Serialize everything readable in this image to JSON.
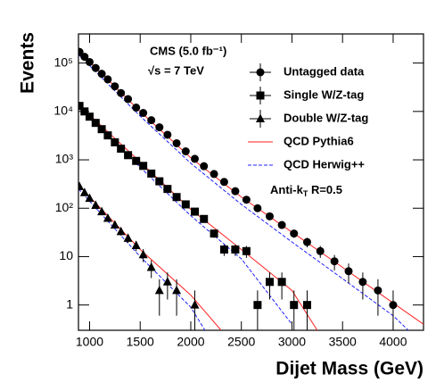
{
  "chart_data": {
    "type": "scatter",
    "xlabel": "Dijet Mass (GeV)",
    "ylabel": "Events",
    "log_y": true,
    "xlim": [
      890,
      4300
    ],
    "ylim": [
      0.3,
      400000
    ],
    "xticks": [
      1000,
      1500,
      2000,
      2500,
      3000,
      3500,
      4000
    ],
    "yticks": [
      1,
      10,
      {
        "value": 100,
        "label": "10²"
      },
      {
        "value": 1000,
        "label": "10³"
      },
      {
        "value": 10000,
        "label": "10⁴"
      },
      {
        "value": 100000,
        "label": "10⁵"
      }
    ],
    "annotations": [
      {
        "text": "CMS (5.0 fb⁻¹)"
      },
      {
        "text": "√s = 7 TeV"
      },
      {
        "text": "Anti-k",
        "sub": "T",
        "rest": " R=0.5"
      }
    ],
    "legend": "upper right",
    "series": [
      {
        "name": "Untagged data",
        "color": "#000000",
        "marker": "circle",
        "x": [
          900,
          950,
          1000,
          1060,
          1120,
          1180,
          1250,
          1310,
          1380,
          1460,
          1530,
          1610,
          1690,
          1770,
          1860,
          1950,
          2040,
          2130,
          2230,
          2330,
          2440,
          2550,
          2660,
          2780,
          2900,
          3020,
          3150,
          3280,
          3420,
          3560,
          3700,
          3850,
          4000
        ],
        "values": [
          170000,
          135000,
          105000,
          79000,
          60000,
          46000,
          33000,
          24000,
          18000,
          12000,
          9300,
          6600,
          4700,
          3300,
          2200,
          1500,
          1050,
          740,
          510,
          350,
          225,
          150,
          100,
          68,
          45,
          30,
          20,
          13,
          8,
          5,
          3,
          2,
          1
        ],
        "errors": [
          412,
          367,
          324,
          281,
          245,
          214,
          182,
          155,
          134,
          110,
          96,
          81,
          69,
          57,
          47,
          39,
          32,
          27,
          23,
          19,
          15,
          12,
          10,
          8,
          7,
          5.5,
          4.5,
          3.6,
          2.8,
          2.2,
          1.7,
          1.4,
          1
        ]
      },
      {
        "name": "Single W/Z-tag",
        "color": "#000000",
        "marker": "square",
        "x": [
          900,
          950,
          1000,
          1060,
          1120,
          1180,
          1250,
          1310,
          1380,
          1460,
          1530,
          1610,
          1690,
          1770,
          1860,
          1950,
          2040,
          2130,
          2230,
          2330,
          2440,
          2550,
          2660,
          2780,
          2900,
          3020,
          3150
        ],
        "values": [
          13000,
          10000,
          7800,
          5800,
          4300,
          3200,
          2300,
          1700,
          1250,
          950,
          750,
          520,
          360,
          250,
          170,
          120,
          85,
          60,
          30,
          14,
          14,
          13,
          1,
          3,
          3,
          1,
          1
        ],
        "errors": [
          114,
          100,
          88,
          76,
          66,
          57,
          48,
          41,
          35,
          31,
          27,
          23,
          19,
          16,
          13,
          11,
          9.2,
          7.7,
          5.5,
          3.7,
          3.7,
          3.6,
          1,
          1.7,
          1.7,
          1,
          1
        ]
      },
      {
        "name": "Double W/Z-tag",
        "color": "#000000",
        "marker": "triangle",
        "x": [
          900,
          950,
          1000,
          1060,
          1120,
          1180,
          1250,
          1310,
          1380,
          1460,
          1530,
          1610,
          1690,
          1770,
          1860,
          2040
        ],
        "values": [
          280,
          210,
          160,
          115,
          85,
          62,
          45,
          33,
          24,
          17,
          11,
          6,
          2,
          3,
          2,
          1
        ],
        "errors": [
          17,
          14.5,
          12.6,
          10.7,
          9.2,
          7.9,
          6.7,
          5.7,
          4.9,
          4.1,
          3.3,
          2.4,
          1.4,
          1.7,
          1.4,
          1
        ]
      }
    ],
    "curves": [
      {
        "name": "QCD Pythia6",
        "color": "#ff2020",
        "dashed": false,
        "lines": [
          {
            "x": [
              890,
              1500,
              2000,
              2500,
              3000,
              3500,
              4000,
              4300
            ],
            "values": [
              180000,
              10000,
              1100,
              170,
              32,
              6,
              1.1,
              0.4
            ]
          },
          {
            "x": [
              890,
              1500,
              2000,
              2500,
              3000,
              3250
            ],
            "values": [
              14000,
              900,
              95,
              14,
              2,
              0.3
            ]
          },
          {
            "x": [
              890,
              1500,
              2000,
              2300
            ],
            "values": [
              300,
              14,
              1.6,
              0.3
            ]
          }
        ]
      },
      {
        "name": "QCD Herwig++",
        "color": "#2020ff",
        "dashed": true,
        "lines": [
          {
            "x": [
              890,
              1500,
              2000,
              2500,
              3000,
              3500,
              4000,
              4150
            ],
            "values": [
              150000,
              8000,
              850,
              120,
              20,
              3.5,
              0.6,
              0.3
            ]
          },
          {
            "x": [
              890,
              1500,
              2000,
              2500,
              3000
            ],
            "values": [
              12000,
              700,
              70,
              9,
              0.4
            ]
          },
          {
            "x": [
              890,
              1500,
              2000,
              2140
            ],
            "values": [
              250,
              10,
              0.9,
              0.3
            ]
          }
        ]
      }
    ]
  }
}
